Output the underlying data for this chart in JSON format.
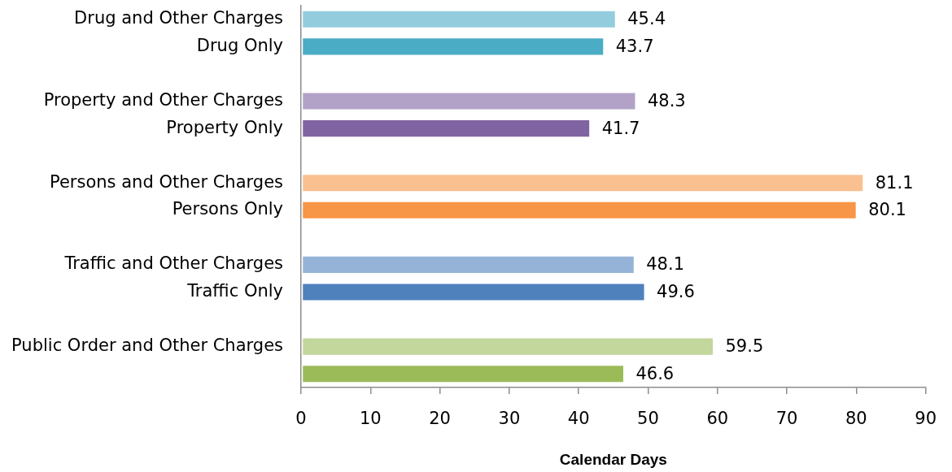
{
  "chart_data": {
    "type": "bar",
    "orientation": "horizontal",
    "categories": [
      "Drug and Other Charges",
      "Drug Only",
      null,
      "Property and Other Charges",
      "Property Only",
      null,
      "Persons and Other Charges",
      "Persons Only",
      null,
      "Traffic and Other Charges",
      "Traffic Only",
      null,
      "Public Order and Other Charges",
      null
    ],
    "values": [
      45.4,
      43.7,
      null,
      48.3,
      41.7,
      null,
      81.1,
      80.1,
      null,
      48.1,
      49.6,
      null,
      59.5,
      46.6
    ],
    "colors": [
      "#93cddd",
      "#4bacc6",
      null,
      "#b3a2c7",
      "#8064a2",
      null,
      "#fac090",
      "#f79646",
      null,
      "#95b3d7",
      "#4f81bd",
      null,
      "#c3d69b",
      "#9bbb59"
    ],
    "xlabel": "Calendar Days",
    "xlim": [
      0,
      90
    ],
    "xticks": [
      0,
      10,
      20,
      30,
      40,
      50,
      60,
      70,
      80,
      90
    ],
    "data_labels": true
  }
}
